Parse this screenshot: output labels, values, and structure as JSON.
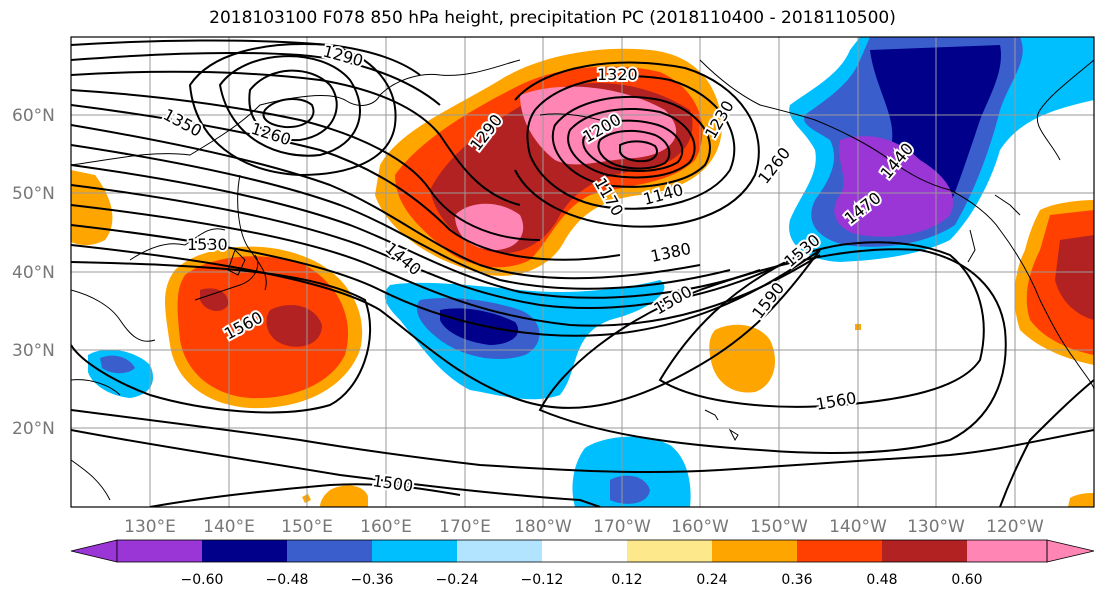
{
  "title": "2018103100 F078 850 hPa height, precipitation PC (2018110400 - 2018110500)",
  "map": {
    "lat_labels": [
      "60°N",
      "50°N",
      "40°N",
      "30°N",
      "20°N"
    ],
    "lon_labels": [
      "130°E",
      "140°E",
      "150°E",
      "160°E",
      "170°E",
      "180°W",
      "170°W",
      "160°W",
      "150°W",
      "140°W",
      "130°W",
      "120°W"
    ],
    "contour_labels": [
      "1290",
      "1320",
      "1350",
      "1260",
      "1290",
      "1200",
      "1230",
      "1260",
      "1170",
      "1140",
      "1440",
      "1470",
      "1530",
      "1440",
      "1380",
      "1530",
      "1500",
      "1590",
      "1560",
      "1560",
      "1500"
    ],
    "lat_range": [
      10,
      70
    ],
    "lon_range_east": [
      120,
      250
    ]
  },
  "colorbar": {
    "ticks": [
      "−0.60",
      "−0.48",
      "−0.36",
      "−0.24",
      "−0.12",
      "0.12",
      "0.24",
      "0.36",
      "0.48",
      "0.60"
    ],
    "colors": [
      "#9a35d6",
      "#00008b",
      "#3a5fcd",
      "#00bfff",
      "#b2e4ff",
      "#ffffff",
      "#fde98b",
      "#ffa500",
      "#ff4000",
      "#b22222",
      "#ff85b5"
    ]
  }
}
